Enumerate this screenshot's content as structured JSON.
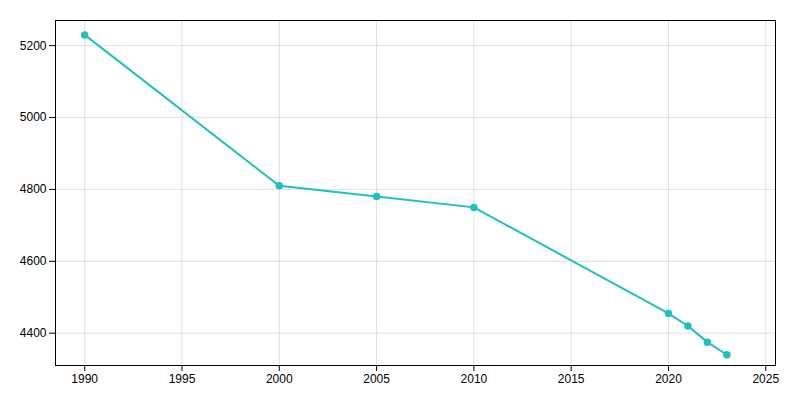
{
  "chart_data": {
    "type": "line",
    "x": [
      1990,
      2000,
      2005,
      2010,
      2020,
      2021,
      2022,
      2023
    ],
    "values": [
      5230,
      4810,
      4780,
      4750,
      4455,
      4420,
      4375,
      4340
    ],
    "color": "#20c0c0",
    "marker": "circle",
    "xlim": [
      1988.5,
      2025.5
    ],
    "ylim": [
      4310,
      5270
    ],
    "xticks": [
      1990,
      1995,
      2000,
      2005,
      2010,
      2015,
      2020,
      2025
    ],
    "yticks": [
      4400,
      4600,
      4800,
      5000,
      5200
    ],
    "grid": true
  }
}
